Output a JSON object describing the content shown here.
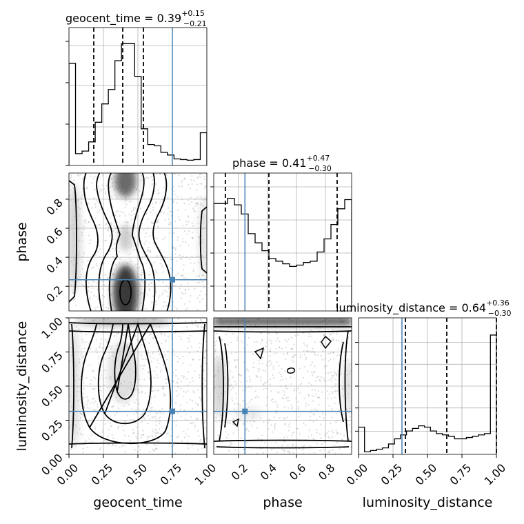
{
  "chart_data": {
    "type": "corner",
    "truth_color": "#4682b4",
    "parameters": [
      "geocent_time",
      "phase",
      "luminosity_distance"
    ],
    "truths": {
      "geocent_time": 0.75,
      "phase": 0.245,
      "luminosity_distance": 0.315
    },
    "ranges": {
      "geocent_time": [
        0.0,
        1.0
      ],
      "phase": [
        0.03,
        0.98
      ],
      "luminosity_distance": [
        0.0,
        1.0
      ]
    },
    "titles": {
      "geocent_time": {
        "name": "geocent_time",
        "median": "0.39",
        "plus": "+0.15",
        "minus": "−0.21"
      },
      "phase": {
        "name": "phase",
        "median": "0.41",
        "plus": "+0.47",
        "minus": "−0.30"
      },
      "luminosity_distance": {
        "name": "luminosity_distance",
        "median": "0.64",
        "plus": "+0.36",
        "minus": "−0.30"
      }
    },
    "quantiles": {
      "geocent_time": [
        0.18,
        0.39,
        0.54
      ],
      "phase": [
        0.11,
        0.41,
        0.88
      ],
      "luminosity_distance": [
        0.34,
        0.64,
        1.0
      ]
    },
    "axis_labels": {
      "x": [
        "geocent_time",
        "phase",
        "luminosity_distance"
      ],
      "y": [
        "phase",
        "luminosity_distance"
      ]
    },
    "tick_labels": {
      "geocent_time_x": [
        "0.00",
        "0.25",
        "0.50",
        "0.75",
        "1.00"
      ],
      "phase_x": [
        "0.2",
        "0.4",
        "0.6",
        "0.8"
      ],
      "luminosity_distance_x": [
        "0.00",
        "0.25",
        "0.50",
        "0.75",
        "1.00"
      ],
      "phase_y": [
        "0.2",
        "0.4",
        "0.6",
        "0.8"
      ],
      "luminosity_distance_y": [
        "0.00",
        "0.25",
        "0.50",
        "0.75",
        "1.00"
      ]
    },
    "histograms": {
      "geocent_time": [
        0.78,
        0.09,
        0.11,
        0.18,
        0.33,
        0.47,
        0.58,
        0.8,
        0.93,
        0.93,
        0.68,
        0.28,
        0.16,
        0.15,
        0.1,
        0.08,
        0.05,
        0.045,
        0.04,
        0.045,
        0.25
      ],
      "phase": [
        0.82,
        0.82,
        0.86,
        0.81,
        0.74,
        0.59,
        0.52,
        0.46,
        0.4,
        0.38,
        0.36,
        0.34,
        0.35,
        0.37,
        0.38,
        0.45,
        0.55,
        0.66,
        0.78,
        0.85
      ],
      "luminosity_distance": [
        0.21,
        0.02,
        0.03,
        0.04,
        0.05,
        0.08,
        0.12,
        0.15,
        0.18,
        0.2,
        0.22,
        0.21,
        0.18,
        0.16,
        0.15,
        0.14,
        0.12,
        0.12,
        0.13,
        0.14,
        0.15,
        0.16,
        0.92
      ]
    },
    "grid": true
  }
}
